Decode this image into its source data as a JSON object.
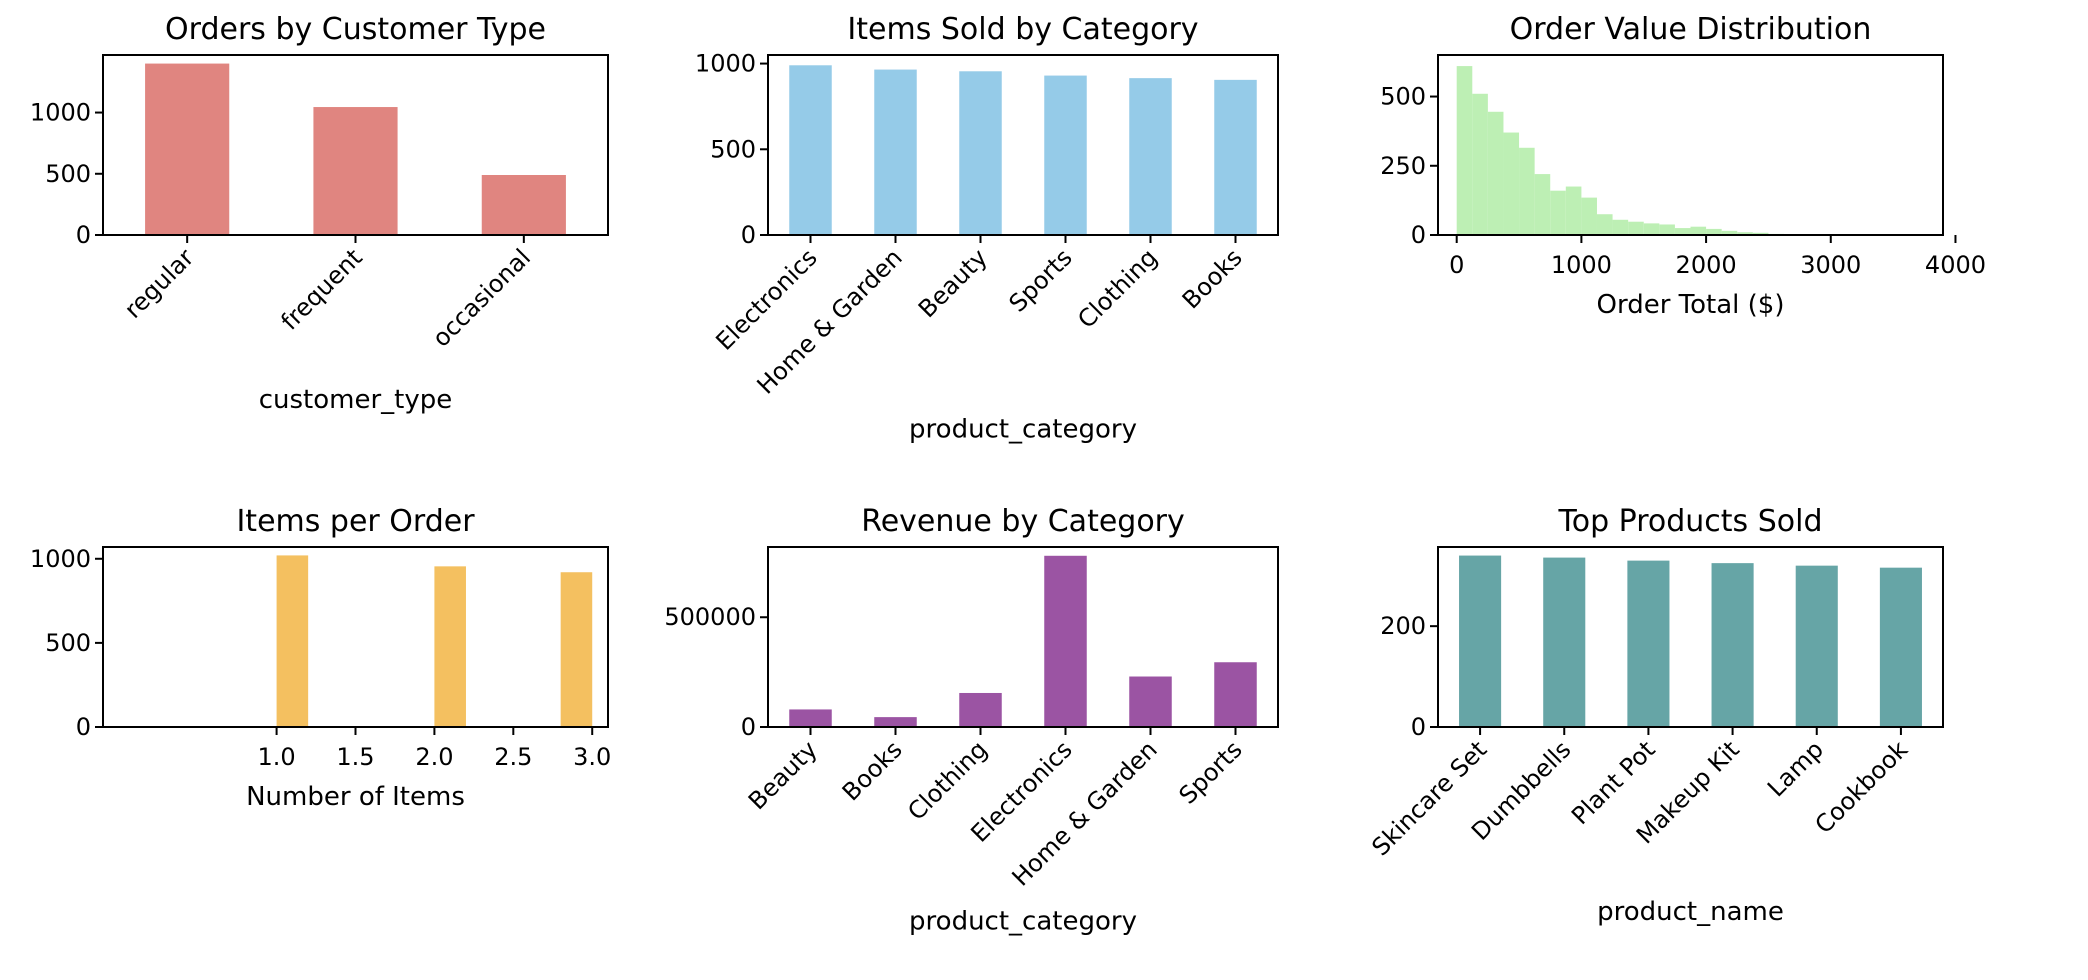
{
  "chart_data": [
    {
      "id": "c1",
      "type": "bar",
      "title": "Orders by Customer Type",
      "xlabel": "customer_type",
      "ylabel": "",
      "categories": [
        "regular",
        "frequent",
        "occasional"
      ],
      "values": [
        1400,
        1045,
        490
      ],
      "ylim": [
        0,
        1470
      ],
      "yticks": [
        0,
        500,
        1000
      ],
      "ytick_labels": [
        "0",
        "500",
        "1000"
      ],
      "color": "#e08580",
      "rotate_labels": true,
      "grid": false
    },
    {
      "id": "c2",
      "type": "bar",
      "title": "Items Sold by Category",
      "xlabel": "product_category",
      "ylabel": "",
      "categories": [
        "Electronics",
        "Home & Garden",
        "Beauty",
        "Sports",
        "Clothing",
        "Books"
      ],
      "values": [
        990,
        965,
        955,
        930,
        915,
        905
      ],
      "ylim": [
        0,
        1050
      ],
      "yticks": [
        0,
        500,
        1000
      ],
      "ytick_labels": [
        "0",
        "500",
        "1000"
      ],
      "color": "#95cbe8",
      "rotate_labels": true,
      "grid": false
    },
    {
      "id": "c3",
      "type": "histogram",
      "title": "Order Value Distribution",
      "xlabel": "Order Total ($)",
      "ylabel": "",
      "bins": [
        {
          "x0": 0,
          "x1": 125,
          "value": 610
        },
        {
          "x0": 125,
          "x1": 250,
          "value": 510
        },
        {
          "x0": 250,
          "x1": 375,
          "value": 445
        },
        {
          "x0": 375,
          "x1": 500,
          "value": 370
        },
        {
          "x0": 500,
          "x1": 625,
          "value": 315
        },
        {
          "x0": 625,
          "x1": 750,
          "value": 220
        },
        {
          "x0": 750,
          "x1": 875,
          "value": 160
        },
        {
          "x0": 875,
          "x1": 1000,
          "value": 175
        },
        {
          "x0": 1000,
          "x1": 1125,
          "value": 135
        },
        {
          "x0": 1125,
          "x1": 1250,
          "value": 75
        },
        {
          "x0": 1250,
          "x1": 1375,
          "value": 55
        },
        {
          "x0": 1375,
          "x1": 1500,
          "value": 48
        },
        {
          "x0": 1500,
          "x1": 1625,
          "value": 42
        },
        {
          "x0": 1625,
          "x1": 1750,
          "value": 38
        },
        {
          "x0": 1750,
          "x1": 1875,
          "value": 25
        },
        {
          "x0": 1875,
          "x1": 2000,
          "value": 30
        },
        {
          "x0": 2000,
          "x1": 2125,
          "value": 22
        },
        {
          "x0": 2125,
          "x1": 2250,
          "value": 15
        },
        {
          "x0": 2250,
          "x1": 2375,
          "value": 10
        },
        {
          "x0": 2375,
          "x1": 2500,
          "value": 8
        },
        {
          "x0": 2500,
          "x1": 2625,
          "value": 4
        },
        {
          "x0": 2625,
          "x1": 2750,
          "value": 2
        }
      ],
      "xlim": [
        -150,
        3900
      ],
      "ylim": [
        0,
        650
      ],
      "xticks": [
        0,
        1000,
        2000,
        3000,
        4000
      ],
      "xtick_labels": [
        "0",
        "1000",
        "2000",
        "3000",
        "4000"
      ],
      "yticks": [
        0,
        250,
        500
      ],
      "ytick_labels": [
        "0",
        "250",
        "500"
      ],
      "color": "#bdefb4",
      "grid": false
    },
    {
      "id": "c4",
      "type": "histogram",
      "title": "Items per Order",
      "xlabel": "Number of Items",
      "ylabel": "",
      "bins": [
        {
          "x0": 1.0,
          "x1": 1.2,
          "value": 1020
        },
        {
          "x0": 2.0,
          "x1": 2.2,
          "value": 955
        },
        {
          "x0": 2.8,
          "x1": 3.0,
          "value": 920
        }
      ],
      "xlim": [
        -0.1,
        3.1
      ],
      "xlim_actual": [
        0.9,
        3.1
      ],
      "ylim": [
        0,
        1070
      ],
      "xticks": [
        1.0,
        1.5,
        2.0,
        2.5,
        3.0
      ],
      "xtick_labels": [
        "1.0",
        "1.5",
        "2.0",
        "2.5",
        "3.0"
      ],
      "yticks": [
        0,
        500,
        1000
      ],
      "ytick_labels": [
        "0",
        "500",
        "1000"
      ],
      "color": "#f4c060",
      "grid": false
    },
    {
      "id": "c5",
      "type": "bar",
      "title": "Revenue by Category",
      "xlabel": "product_category",
      "ylabel": "",
      "categories": [
        "Beauty",
        "Books",
        "Clothing",
        "Electronics",
        "Home & Garden",
        "Sports"
      ],
      "values": [
        80000,
        45000,
        155000,
        780000,
        230000,
        295000
      ],
      "ylim": [
        0,
        820000
      ],
      "yticks": [
        0,
        500000
      ],
      "ytick_labels": [
        "0",
        "500000"
      ],
      "color": "#9b54a3",
      "rotate_labels": true,
      "grid": false
    },
    {
      "id": "c6",
      "type": "bar",
      "title": "Top Products Sold",
      "xlabel": "product_name",
      "ylabel": "",
      "categories": [
        "Skincare Set",
        "Dumbbells",
        "Plant Pot",
        "Makeup Kit",
        "Lamp",
        "Cookbook"
      ],
      "values": [
        340,
        336,
        330,
        325,
        320,
        316
      ],
      "ylim": [
        0,
        357
      ],
      "yticks": [
        0,
        200
      ],
      "ytick_labels": [
        "0",
        "200"
      ],
      "color": "#66a5a6",
      "rotate_labels": true,
      "grid": false
    }
  ]
}
